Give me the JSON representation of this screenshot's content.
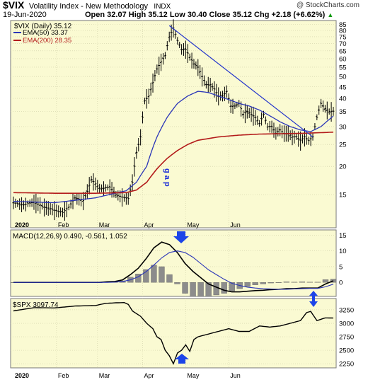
{
  "header": {
    "symbol": "$VIX",
    "name": "Volatility Index - New Methodology",
    "exchange": "INDX",
    "watermark": "@ StockCharts.com",
    "date": "19-Jun-2020",
    "ohlc": "Open 32.07   High 35.12   Low 30.40   Close 35.12   Chg +2.18 (+6.62%)",
    "ohlc_arrow": "▲"
  },
  "legend": {
    "price_label": "$VIX (Daily) 35.12",
    "ema50_label": "EMA(50) 33.37",
    "ema200_label": "EMA(200) 28.35",
    "macd_label": "MACD(12,26,9) 0.490, -0.561, 1.052",
    "spx_label": "$SPX 3097.74"
  },
  "annotations": {
    "gap_text": "g a p"
  },
  "colors": {
    "panel_bg": "#fafad2",
    "price": "#000000",
    "ema50": "#2a35b8",
    "ema200": "#b31b1b",
    "trendline": "#2233cc",
    "arrow": "#1c44e8",
    "histogram": "#8c8c8c"
  },
  "chart_data": [
    {
      "type": "line",
      "title": "$VIX Daily with EMA(50) and EMA(200)",
      "x_ticks": [
        "2020",
        "Feb",
        "Mar",
        "Apr",
        "May",
        "Jun"
      ],
      "y_ticks": [
        15,
        20,
        25,
        30,
        35,
        40,
        45,
        50,
        55,
        60,
        65,
        70,
        75,
        80,
        85
      ],
      "y_scale": "log",
      "ylim": [
        11,
        86
      ],
      "series": [
        {
          "name": "$VIX (Daily)",
          "points": [
            [
              0,
              13.8
            ],
            [
              5,
              13.5
            ],
            [
              10,
              13.9
            ],
            [
              15,
              13.2
            ],
            [
              18,
              13.0
            ],
            [
              20,
              12.8
            ],
            [
              24,
              12.5
            ],
            [
              27,
              13.2
            ],
            [
              30,
              14.5
            ],
            [
              34,
              14.1
            ],
            [
              36,
              15.5
            ],
            [
              38,
              17.5
            ],
            [
              42,
              16.0
            ],
            [
              44,
              16.0
            ],
            [
              47,
              16.2
            ],
            [
              50,
              15.0
            ],
            [
              54,
              14.5
            ],
            [
              56,
              14.4
            ],
            [
              58,
              17.0
            ],
            [
              60,
              23.0
            ],
            [
              62,
              27.0
            ],
            [
              64,
              39.0
            ],
            [
              66,
              41.0
            ],
            [
              68,
              47.0
            ],
            [
              70,
              54.0
            ],
            [
              72,
              58.0
            ],
            [
              74,
              62.0
            ],
            [
              76,
              75.0
            ],
            [
              78,
              82.0
            ],
            [
              80,
              72.0
            ],
            [
              82,
              66.0
            ],
            [
              84,
              66.0
            ],
            [
              86,
              61.0
            ],
            [
              88,
              57.0
            ],
            [
              90,
              55.0
            ],
            [
              92,
              50.0
            ],
            [
              94,
              46.0
            ],
            [
              96,
              46.0
            ],
            [
              98,
              44.0
            ],
            [
              100,
              41.0
            ],
            [
              102,
              41.0
            ],
            [
              104,
              43.0
            ],
            [
              106,
              37.0
            ],
            [
              108,
              37.0
            ],
            [
              110,
              38.0
            ],
            [
              112,
              34.0
            ],
            [
              114,
              35.0
            ],
            [
              116,
              34.0
            ],
            [
              118,
              33.0
            ],
            [
              120,
              31.0
            ],
            [
              122,
              34.0
            ],
            [
              124,
              30.0
            ],
            [
              126,
              30.0
            ],
            [
              128,
              28.0
            ],
            [
              130,
              29.0
            ],
            [
              132,
              28.0
            ],
            [
              134,
              28.0
            ],
            [
              136,
              27.0
            ],
            [
              138,
              27.0
            ],
            [
              140,
              26.0
            ],
            [
              142,
              27.0
            ],
            [
              144,
              26.0
            ],
            [
              146,
              27.0
            ],
            [
              148,
              33.0
            ],
            [
              150,
              38.0
            ],
            [
              152,
              36.0
            ],
            [
              154,
              35.0
            ],
            [
              156,
              35.1
            ]
          ]
        },
        {
          "name": "EMA(50)",
          "points": [
            [
              0,
              14.0
            ],
            [
              20,
              13.8
            ],
            [
              40,
              14.5
            ],
            [
              55,
              15.6
            ],
            [
              60,
              17.0
            ],
            [
              65,
              20.0
            ],
            [
              70,
              27.0
            ],
            [
              75,
              33.0
            ],
            [
              80,
              38.0
            ],
            [
              85,
              41.0
            ],
            [
              90,
              43.0
            ],
            [
              95,
              42.5
            ],
            [
              100,
              41.0
            ],
            [
              105,
              39.5
            ],
            [
              110,
              38.0
            ],
            [
              115,
              37.0
            ],
            [
              120,
              35.5
            ],
            [
              125,
              33.5
            ],
            [
              130,
              31.5
            ],
            [
              135,
              30.0
            ],
            [
              140,
              29.0
            ],
            [
              145,
              28.5
            ],
            [
              150,
              30.0
            ],
            [
              156,
              33.4
            ]
          ]
        },
        {
          "name": "EMA(200)",
          "points": [
            [
              0,
              15.3
            ],
            [
              20,
              15.2
            ],
            [
              40,
              15.2
            ],
            [
              55,
              15.3
            ],
            [
              60,
              15.7
            ],
            [
              65,
              17.0
            ],
            [
              70,
              19.5
            ],
            [
              75,
              21.7
            ],
            [
              80,
              23.5
            ],
            [
              85,
              25.0
            ],
            [
              90,
              26.1
            ],
            [
              100,
              27.0
            ],
            [
              110,
              27.5
            ],
            [
              120,
              27.8
            ],
            [
              130,
              27.9
            ],
            [
              140,
              28.0
            ],
            [
              150,
              28.2
            ],
            [
              156,
              28.35
            ]
          ]
        }
      ],
      "trendline": [
        [
          76,
          84
        ],
        [
          146,
          27
        ]
      ]
    },
    {
      "type": "line",
      "title": "MACD(12,26,9)",
      "y_ticks": [
        15,
        10,
        5,
        0
      ],
      "ylim": [
        -4,
        16
      ],
      "series": [
        {
          "name": "MACD",
          "values": [
            0,
            0,
            0,
            0,
            0,
            0,
            0,
            0,
            0,
            0,
            0,
            0,
            0.2,
            0.3,
            0.8,
            2.5,
            4.5,
            7.5,
            11.0,
            12.8,
            12.0,
            9.5,
            6.0,
            3.5,
            1.5,
            -0.5,
            -1.5,
            -2.5,
            -3.0,
            -3.0,
            -2.8,
            -2.6,
            -2.5,
            -2.3,
            -2.2,
            -2.0,
            -2.0,
            -1.8,
            -1.8,
            -1.8,
            -0.5,
            0.49
          ]
        },
        {
          "name": "Signal",
          "values": [
            0,
            0,
            0,
            0,
            0,
            0,
            0,
            0,
            0,
            0,
            0,
            0,
            0,
            0.1,
            0.3,
            0.8,
            1.8,
            3.4,
            5.5,
            7.8,
            9.5,
            10.0,
            9.5,
            8.0,
            6.0,
            4.0,
            2.5,
            1.0,
            -0.3,
            -1.0,
            -1.5,
            -1.8,
            -2.0,
            -2.1,
            -2.2,
            -2.2,
            -2.1,
            -2.0,
            -1.9,
            -1.9,
            -1.4,
            -0.56
          ]
        },
        {
          "name": "Histogram",
          "values": [
            0,
            0,
            0,
            0,
            0,
            0,
            0,
            0,
            0,
            0,
            0,
            0,
            0.2,
            0.2,
            0.5,
            1.7,
            2.7,
            4.1,
            5.5,
            5.0,
            2.5,
            -0.5,
            -3.5,
            -4.5,
            -4.5,
            -4.5,
            -4.0,
            -3.5,
            -2.7,
            -2.0,
            -1.3,
            -0.8,
            -0.5,
            -0.2,
            0,
            0.2,
            0.1,
            0.2,
            0.1,
            0.1,
            0.9,
            1.05
          ]
        }
      ]
    },
    {
      "type": "line",
      "title": "$SPX",
      "y_ticks": [
        3250,
        3000,
        2750,
        2500,
        2250
      ],
      "ylim": [
        2200,
        3420
      ],
      "series": [
        {
          "name": "$SPX",
          "points": [
            [
              0,
              3230
            ],
            [
              10,
              3290
            ],
            [
              20,
              3285
            ],
            [
              30,
              3320
            ],
            [
              40,
              3330
            ],
            [
              45,
              3370
            ],
            [
              50,
              3380
            ],
            [
              54,
              3385
            ],
            [
              56,
              3350
            ],
            [
              58,
              3230
            ],
            [
              62,
              3130
            ],
            [
              65,
              3000
            ],
            [
              68,
              2900
            ],
            [
              70,
              2750
            ],
            [
              72,
              2700
            ],
            [
              74,
              2500
            ],
            [
              76,
              2400
            ],
            [
              78,
              2250
            ],
            [
              80,
              2450
            ],
            [
              82,
              2500
            ],
            [
              84,
              2600
            ],
            [
              86,
              2480
            ],
            [
              88,
              2700
            ],
            [
              90,
              2750
            ],
            [
              95,
              2800
            ],
            [
              100,
              2850
            ],
            [
              105,
              2900
            ],
            [
              110,
              2850
            ],
            [
              115,
              2850
            ],
            [
              120,
              2950
            ],
            [
              125,
              2930
            ],
            [
              130,
              2950
            ],
            [
              135,
              3000
            ],
            [
              140,
              3050
            ],
            [
              143,
              3200
            ],
            [
              145,
              3220
            ],
            [
              148,
              3050
            ],
            [
              152,
              3100
            ],
            [
              156,
              3097.74
            ]
          ]
        }
      ]
    }
  ]
}
